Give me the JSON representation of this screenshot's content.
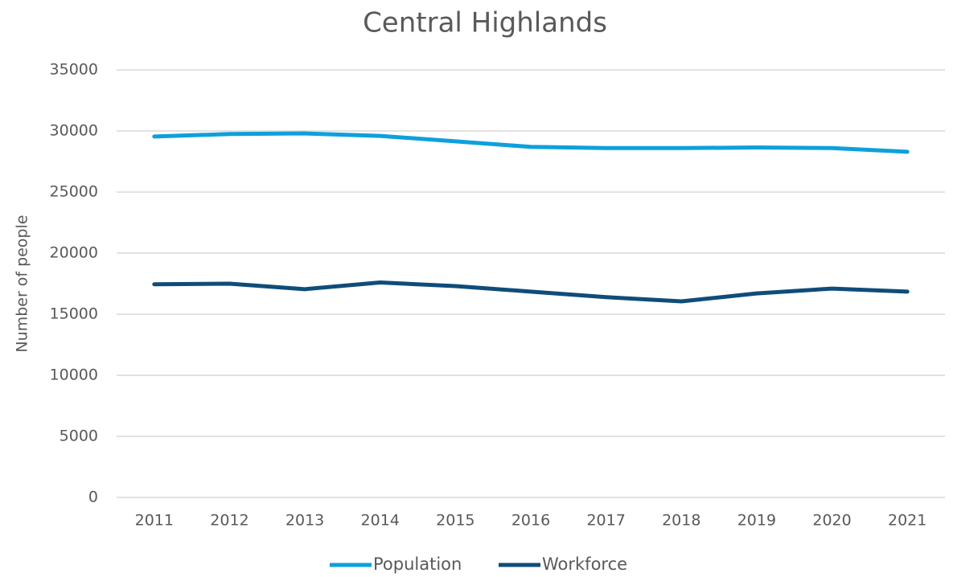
{
  "chart_data": {
    "type": "line",
    "title": "Central Highlands",
    "y_label": "Number of people",
    "categories": [
      "2011",
      "2012",
      "2013",
      "2014",
      "2015",
      "2016",
      "2017",
      "2018",
      "2019",
      "2020",
      "2021"
    ],
    "series": [
      {
        "name": "Population",
        "color": "#0ea0dc",
        "values": [
          29550,
          29750,
          29800,
          29600,
          29150,
          28700,
          28600,
          28600,
          28650,
          28600,
          28300
        ]
      },
      {
        "name": "Workforce",
        "color": "#0f4c7a",
        "values": [
          17450,
          17500,
          17050,
          17600,
          17300,
          16850,
          16400,
          16050,
          16700,
          17100,
          16850
        ]
      }
    ],
    "ylim": [
      0,
      35000
    ],
    "yticks": [
      0,
      5000,
      10000,
      15000,
      20000,
      25000,
      30000,
      35000
    ],
    "grid": true,
    "legend": "bottom"
  }
}
